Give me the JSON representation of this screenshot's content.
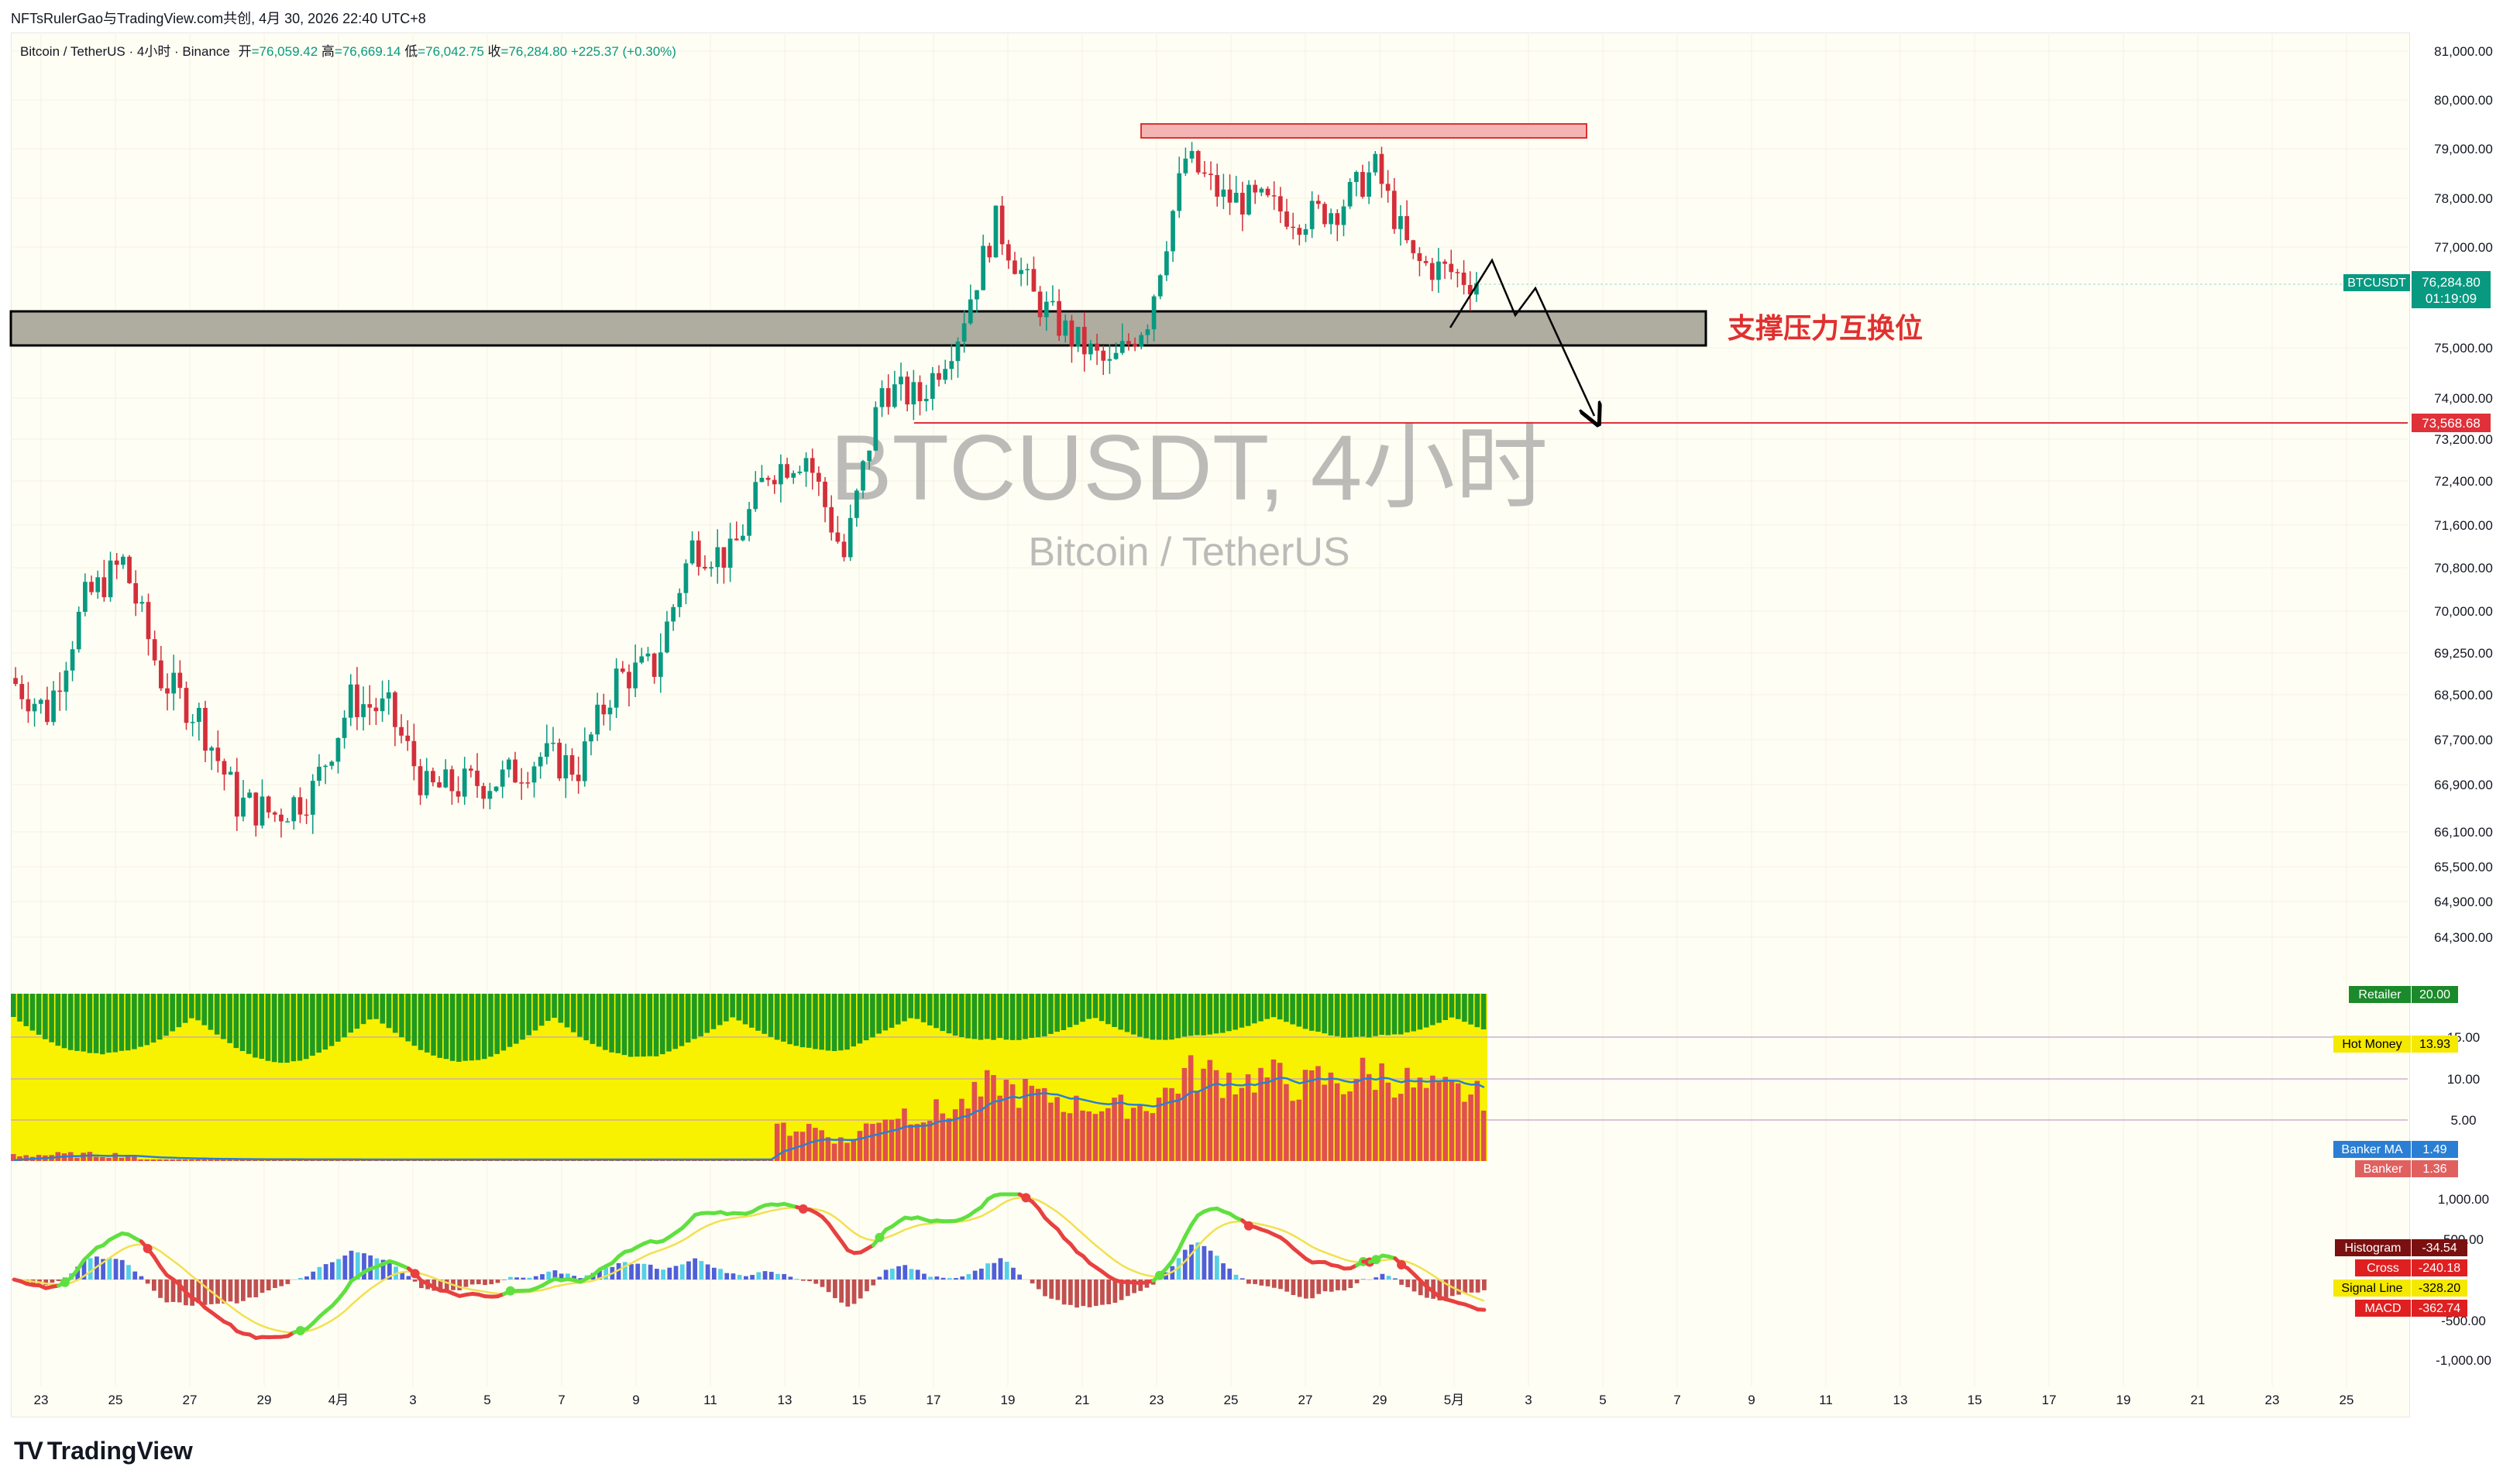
{
  "header": {
    "author_line": "NFTsRulerGao与TradingView.com共创, 4月 30, 2026 22:40 UTC+8"
  },
  "symbol": {
    "title": "Bitcoin / TetherUS · 4小时 · Binance",
    "open_label": "开",
    "open": "76,059.42",
    "high_label": "高",
    "high": "76,669.14",
    "low_label": "低",
    "low": "76,042.75",
    "close_label": "收",
    "close": "76,284.80",
    "change": "+225.37 (+0.30%)"
  },
  "watermark": {
    "main": "BTCUSDT, 4小时",
    "sub": "Bitcoin / TetherUS"
  },
  "annotation": {
    "zone_label": "支撑压力互换位"
  },
  "price_badges": {
    "symbol": "BTCUSDT",
    "last": "76,284.80",
    "countdown": "01:19:09",
    "target_line": "73,568.68"
  },
  "indicator_badges": {
    "retailer_label": "Retailer",
    "retailer": "20.00",
    "hot_money_label": "Hot Money",
    "hot_money": "13.93",
    "banker_ma_label": "Banker MA",
    "banker_ma": "1.49",
    "banker_label": "Banker",
    "banker": "1.36",
    "histogram_label": "Histogram",
    "histogram": "-34.54",
    "cross_label": "Cross",
    "cross": "-240.18",
    "signal_label": "Signal Line",
    "signal": "-328.20",
    "macd_label": "MACD",
    "macd": "-362.74"
  },
  "brand": {
    "name": "TradingView",
    "logo": "TV"
  },
  "chart_data": {
    "type": "candlestick",
    "title": "BTCUSDT, 4小时",
    "price_axis_ticks": [
      "81,000.00",
      "80,000.00",
      "79,000.00",
      "78,000.00",
      "77,000.00",
      "75,000.00",
      "74,000.00",
      "73,200.00",
      "72,400.00",
      "71,600.00",
      "70,800.00",
      "70,000.00",
      "69,250.00",
      "68,500.00",
      "67,700.00",
      "66,900.00",
      "66,100.00",
      "65,500.00",
      "64,900.00",
      "64,300.00"
    ],
    "indicator_axis_ticks": [
      "15.00",
      "10.00",
      "5.00"
    ],
    "macd_axis_ticks": [
      "1,000.00",
      "500.00",
      "-500.00",
      "-1,000.00"
    ],
    "time_axis_ticks": [
      "23",
      "25",
      "27",
      "29",
      "4月",
      "3",
      "5",
      "7",
      "9",
      "11",
      "13",
      "15",
      "17",
      "19",
      "21",
      "23",
      "25",
      "27",
      "29",
      "5月",
      "3",
      "5",
      "7",
      "9",
      "11",
      "13",
      "15",
      "17",
      "19",
      "21",
      "23",
      "25"
    ],
    "resistance_zone": [
      79300,
      79550
    ],
    "support_resistance_zone": [
      75000,
      75700
    ],
    "target_price": 73568.68,
    "last_price": 76284.8,
    "price_path_daily": [
      {
        "day": "Mar 23",
        "close": 68200
      },
      {
        "day": "Mar 24",
        "close": 70200
      },
      {
        "day": "Mar 25",
        "close": 70900
      },
      {
        "day": "Mar 26",
        "close": 68800
      },
      {
        "day": "Mar 27",
        "close": 68100
      },
      {
        "day": "Mar 28",
        "close": 66600
      },
      {
        "day": "Mar 29",
        "close": 66400
      },
      {
        "day": "Mar 30",
        "close": 66800
      },
      {
        "day": "Mar 31",
        "close": 68400
      },
      {
        "day": "Apr 1",
        "close": 68200
      },
      {
        "day": "Apr 2",
        "close": 66800
      },
      {
        "day": "Apr 3",
        "close": 66900
      },
      {
        "day": "Apr 4",
        "close": 67000
      },
      {
        "day": "Apr 5",
        "close": 67400
      },
      {
        "day": "Apr 6",
        "close": 67200
      },
      {
        "day": "Apr 7",
        "close": 68800
      },
      {
        "day": "Apr 8",
        "close": 69000
      },
      {
        "day": "Apr 9",
        "close": 71200
      },
      {
        "day": "Apr 10",
        "close": 71000
      },
      {
        "day": "Apr 11",
        "close": 72600
      },
      {
        "day": "Apr 12",
        "close": 72900
      },
      {
        "day": "Apr 13",
        "close": 71000
      },
      {
        "day": "Apr 14",
        "close": 74200
      },
      {
        "day": "Apr 15",
        "close": 74000
      },
      {
        "day": "Apr 16",
        "close": 75300
      },
      {
        "day": "Apr 17",
        "close": 77500
      },
      {
        "day": "Apr 18",
        "close": 76000
      },
      {
        "day": "Apr 19",
        "close": 75200
      },
      {
        "day": "Apr 20",
        "close": 74600
      },
      {
        "day": "Apr 21",
        "close": 75600
      },
      {
        "day": "Apr 22",
        "close": 78800
      },
      {
        "day": "Apr 23",
        "close": 78000
      },
      {
        "day": "Apr 24",
        "close": 77900
      },
      {
        "day": "Apr 25",
        "close": 77600
      },
      {
        "day": "Apr 26",
        "close": 77800
      },
      {
        "day": "Apr 27",
        "close": 78600
      },
      {
        "day": "Apr 28",
        "close": 76700
      },
      {
        "day": "Apr 29",
        "close": 76500
      },
      {
        "day": "Apr 30",
        "close": 76284.8
      }
    ]
  }
}
